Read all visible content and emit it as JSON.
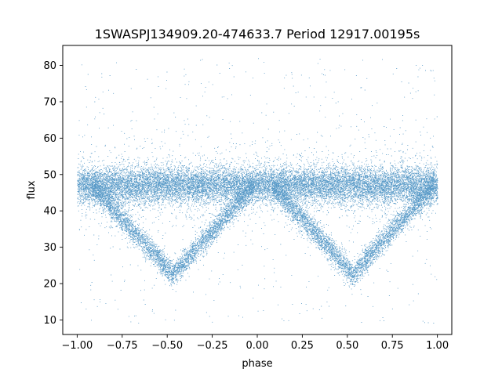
{
  "chart_data": {
    "type": "scatter",
    "title": "1SWASPJ134909.20-474633.7 Period 12917.00195s",
    "xlabel": "phase",
    "ylabel": "flux",
    "xlim": [
      -1.08,
      1.08
    ],
    "ylim": [
      6,
      85.5
    ],
    "x_ticks": [
      -1.0,
      -0.75,
      -0.5,
      -0.25,
      0.0,
      0.25,
      0.5,
      0.75,
      1.0
    ],
    "x_tick_labels": [
      "−1.00",
      "−0.75",
      "−0.50",
      "−0.25",
      "0.00",
      "0.25",
      "0.50",
      "0.75",
      "1.00"
    ],
    "y_ticks": [
      10,
      20,
      30,
      40,
      50,
      60,
      70,
      80
    ],
    "y_tick_labels": [
      "10",
      "20",
      "30",
      "40",
      "50",
      "60",
      "70",
      "80"
    ],
    "grid": false,
    "marker_color": "#1f77b4",
    "series": [
      {
        "component": "out-of-eclipse baseline",
        "x_range": [
          -1.0,
          1.0
        ],
        "y_center": 47,
        "y_spread": [
          42,
          52
        ]
      },
      {
        "component": "eclipse",
        "center_x": -0.47,
        "half_width": 0.45,
        "baseline_y": 47,
        "min_y": 22.5
      },
      {
        "component": "eclipse",
        "center_x": 0.53,
        "half_width": 0.45,
        "baseline_y": 47,
        "min_y": 22.5
      },
      {
        "component": "outlier envelope",
        "x_range": [
          -1.0,
          1.0
        ],
        "y_range": [
          9,
          82
        ]
      }
    ]
  }
}
